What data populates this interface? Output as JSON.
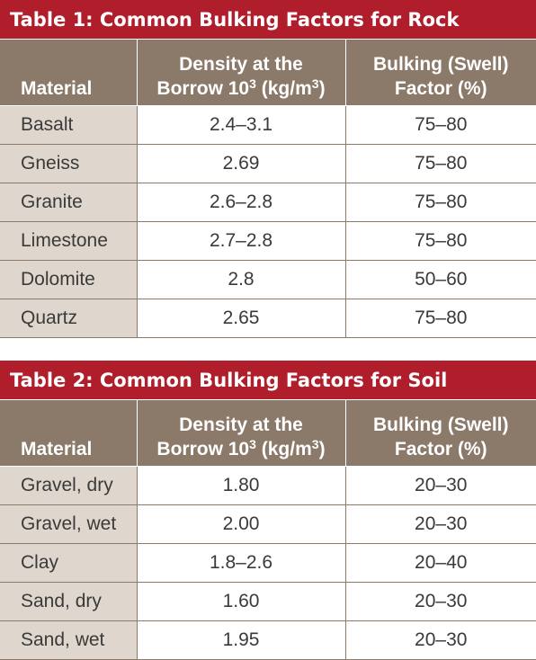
{
  "table1": {
    "title": "Table 1: Common Bulking Factors for Rock",
    "headers": {
      "material": "Material",
      "density_line1": "Density at the",
      "density_line2_pre": "Borrow 10",
      "density_exp": "3",
      "density_line2_mid": " (kg/m",
      "density_unit_exp": "3",
      "density_line2_post": ")",
      "bulking_line1": "Bulking (Swell)",
      "bulking_line2": "Factor (%)"
    },
    "rows": [
      {
        "material": "Basalt",
        "density": "2.4–3.1",
        "bulking": "75–80"
      },
      {
        "material": "Gneiss",
        "density": "2.69",
        "bulking": "75–80"
      },
      {
        "material": "Granite",
        "density": "2.6–2.8",
        "bulking": "75–80"
      },
      {
        "material": "Limestone",
        "density": "2.7–2.8",
        "bulking": "75–80"
      },
      {
        "material": "Dolomite",
        "density": "2.8",
        "bulking": "50–60"
      },
      {
        "material": "Quartz",
        "density": "2.65",
        "bulking": "75–80"
      }
    ]
  },
  "table2": {
    "title": "Table 2: Common Bulking Factors for Soil",
    "headers": {
      "material": "Material",
      "density_line1": "Density at the",
      "density_line2_pre": "Borrow 10",
      "density_exp": "3",
      "density_line2_mid": " (kg/m",
      "density_unit_exp": "3",
      "density_line2_post": ")",
      "bulking_line1": "Bulking (Swell)",
      "bulking_line2": "Factor (%)"
    },
    "rows": [
      {
        "material": "Gravel, dry",
        "density": "1.80",
        "bulking": "20–30"
      },
      {
        "material": "Gravel, wet",
        "density": "2.00",
        "bulking": "20–30"
      },
      {
        "material": "Clay",
        "density": "1.8–2.6",
        "bulking": "20–40"
      },
      {
        "material": "Sand, dry",
        "density": "1.60",
        "bulking": "20–30"
      },
      {
        "material": "Sand, wet",
        "density": "1.95",
        "bulking": "20–30"
      }
    ]
  },
  "colors": {
    "title_bg": "#b01e2c",
    "header_bg": "#8b7969",
    "material_col_bg": "#dfd6cd",
    "text": "#3a3a3a"
  }
}
